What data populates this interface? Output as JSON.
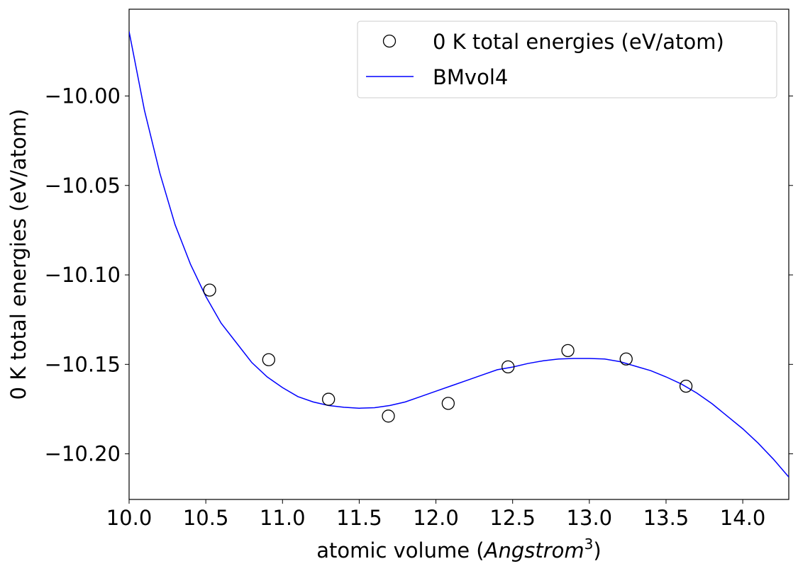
{
  "chart_data": {
    "type": "scatter",
    "xlabel": "atomic volume (",
    "xlabel_math": "Angstrom",
    "xlabel_sup": "3",
    "xlabel_end": ")",
    "ylabel": "0 K total energies (eV/atom)",
    "xlim": [
      10.0,
      14.3
    ],
    "ylim": [
      -10.2255,
      -9.9515
    ],
    "xticks": [
      10.0,
      10.5,
      11.0,
      11.5,
      12.0,
      12.5,
      13.0,
      13.5,
      14.0
    ],
    "xtick_labels": [
      "10.0",
      "10.5",
      "11.0",
      "11.5",
      "12.0",
      "12.5",
      "13.0",
      "13.5",
      "14.0"
    ],
    "yticks": [
      -10.0,
      -10.05,
      -10.1,
      -10.15,
      -10.2
    ],
    "ytick_labels": [
      "−10.00",
      "−10.05",
      "−10.10",
      "−10.15",
      "−10.20"
    ],
    "legend_position": "top-right",
    "grid": false,
    "series": [
      {
        "name": "0 K total energies (eV/atom)",
        "kind": "scatter",
        "marker": "open-circle",
        "color": "#000000",
        "x": [
          10.525,
          10.91,
          11.3,
          11.69,
          12.08,
          12.47,
          12.86,
          13.24,
          13.63
        ],
        "y": [
          -10.1085,
          -10.1474,
          -10.1695,
          -10.1789,
          -10.1718,
          -10.1514,
          -10.1423,
          -10.147,
          -10.1622
        ]
      },
      {
        "name": "BMvol4",
        "kind": "line",
        "color": "#0000ff",
        "x": [
          10.0,
          10.1,
          10.2,
          10.3,
          10.4,
          10.5,
          10.6,
          10.7,
          10.8,
          10.9,
          11.0,
          11.1,
          11.2,
          11.3,
          11.4,
          11.5,
          11.6,
          11.7,
          11.8,
          11.9,
          12.0,
          12.1,
          12.2,
          12.3,
          12.4,
          12.5,
          12.6,
          12.7,
          12.8,
          12.9,
          13.0,
          13.1,
          13.2,
          13.3,
          13.4,
          13.5,
          13.6,
          13.7,
          13.8,
          13.9,
          14.0,
          14.1,
          14.2,
          14.3
        ],
        "y": [
          -9.964,
          -10.008,
          -10.043,
          -10.072,
          -10.094,
          -10.112,
          -10.127,
          -10.138,
          -10.149,
          -10.157,
          -10.163,
          -10.168,
          -10.171,
          -10.173,
          -10.174,
          -10.1745,
          -10.1742,
          -10.173,
          -10.171,
          -10.168,
          -10.165,
          -10.162,
          -10.159,
          -10.156,
          -10.153,
          -10.1515,
          -10.1495,
          -10.148,
          -10.147,
          -10.1467,
          -10.1467,
          -10.147,
          -10.1485,
          -10.151,
          -10.1535,
          -10.157,
          -10.161,
          -10.166,
          -10.172,
          -10.179,
          -10.186,
          -10.194,
          -10.203,
          -10.213
        ]
      }
    ]
  }
}
